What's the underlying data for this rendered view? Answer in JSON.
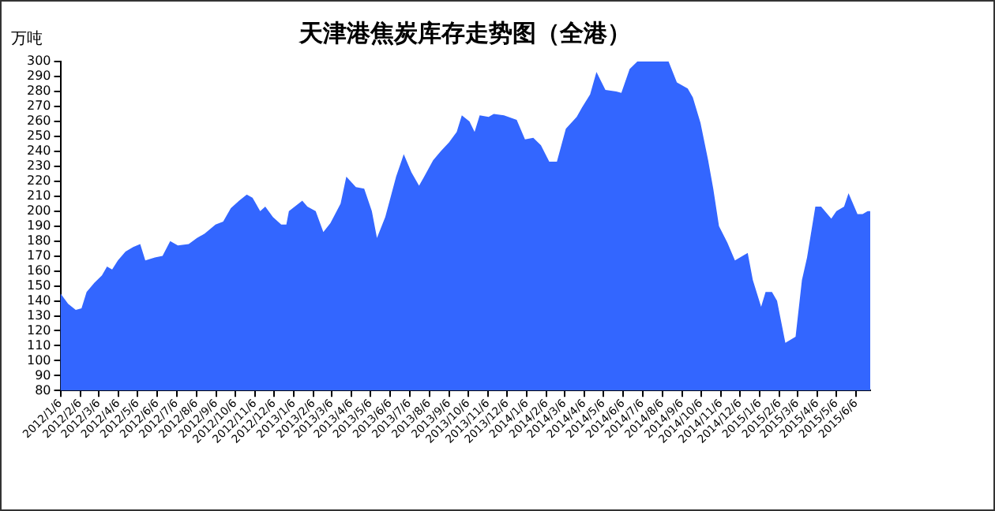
{
  "chart_data": {
    "type": "area",
    "title": "天津港焦炭库存走势图（全港）",
    "ylabel": "万吨",
    "x": [
      "2012-01-06",
      "2012-01-18",
      "2012-01-30",
      "2012-02-08",
      "2012-02-16",
      "2012-02-28",
      "2012-03-11",
      "2012-03-19",
      "2012-03-27",
      "2012-04-05",
      "2012-04-17",
      "2012-04-29",
      "2012-05-10",
      "2012-05-18",
      "2012-06-02",
      "2012-06-14",
      "2012-06-26",
      "2012-07-08",
      "2012-07-25",
      "2012-08-07",
      "2012-08-19",
      "2012-09-05",
      "2012-09-17",
      "2012-09-29",
      "2012-10-12",
      "2012-10-24",
      "2012-11-02",
      "2012-11-14",
      "2012-11-22",
      "2012-12-04",
      "2012-12-17",
      "2012-12-25",
      "2012-12-29",
      "2013-01-19",
      "2013-01-27",
      "2013-02-09",
      "2013-02-21",
      "2013-03-04",
      "2013-03-20",
      "2013-03-29",
      "2013-04-13",
      "2013-04-26",
      "2013-05-08",
      "2013-05-16",
      "2013-05-29",
      "2013-06-15",
      "2013-06-27",
      "2013-07-09",
      "2013-07-21",
      "2013-07-29",
      "2013-08-12",
      "2013-08-24",
      "2013-09-06",
      "2013-09-18",
      "2013-09-26",
      "2013-10-08",
      "2013-10-16",
      "2013-10-24",
      "2013-11-07",
      "2013-11-15",
      "2013-12-01",
      "2013-12-21",
      "2014-01-03",
      "2014-01-16",
      "2014-01-28",
      "2014-02-10",
      "2014-02-22",
      "2014-03-08",
      "2014-03-25",
      "2014-04-02",
      "2014-04-15",
      "2014-04-25",
      "2014-05-09",
      "2014-05-26",
      "2014-06-03",
      "2014-06-16",
      "2014-06-28",
      "2014-08-16",
      "2014-08-29",
      "2014-09-15",
      "2014-09-23",
      "2014-10-05",
      "2014-10-17",
      "2014-10-25",
      "2014-11-03",
      "2014-11-16",
      "2014-11-28",
      "2014-12-10",
      "2014-12-18",
      "2014-12-26",
      "2015-01-08",
      "2015-01-15",
      "2015-01-25",
      "2015-02-02",
      "2015-02-15",
      "2015-03-03",
      "2015-03-13",
      "2015-03-21",
      "2015-04-03",
      "2015-04-12",
      "2015-04-28",
      "2015-05-06",
      "2015-05-18",
      "2015-05-25",
      "2015-06-08",
      "2015-06-16",
      "2015-06-24",
      "2015-06-28"
    ],
    "values": [
      145,
      138,
      134,
      135,
      146,
      152,
      157,
      163,
      161,
      167,
      173,
      176,
      178,
      167,
      169,
      170,
      180,
      177,
      178,
      182,
      185,
      191,
      193,
      202,
      207,
      211,
      209,
      200,
      203,
      196,
      191,
      191,
      200,
      207,
      203,
      200,
      186,
      192,
      205,
      223,
      216,
      215,
      200,
      182,
      196,
      223,
      238,
      226,
      217,
      223,
      234,
      240,
      246,
      253,
      264,
      260,
      253,
      264,
      263,
      265,
      264,
      261,
      248,
      249,
      244,
      233,
      233,
      255,
      263,
      269,
      278,
      293,
      281,
      280,
      279,
      295,
      300,
      300,
      286,
      282,
      276,
      259,
      234,
      215,
      190,
      179,
      167,
      170,
      172,
      154,
      136,
      146,
      146,
      140,
      112,
      116,
      154,
      169,
      203,
      203,
      195,
      200,
      203,
      212,
      198,
      198,
      200,
      200
    ],
    "color": "#3366ff",
    "xlim": [
      "2012-01-06",
      "2015-06-28"
    ],
    "xticks": [
      {
        "value": "2012-01-06",
        "label": "2012/1/6"
      },
      {
        "value": "2012-02-06",
        "label": "2012/2/6"
      },
      {
        "value": "2012-03-06",
        "label": "2012/3/6"
      },
      {
        "value": "2012-04-06",
        "label": "2012/4/6"
      },
      {
        "value": "2012-05-06",
        "label": "2012/5/6"
      },
      {
        "value": "2012-06-06",
        "label": "2012/6/6"
      },
      {
        "value": "2012-07-06",
        "label": "2012/7/6"
      },
      {
        "value": "2012-08-06",
        "label": "2012/8/6"
      },
      {
        "value": "2012-09-06",
        "label": "2012/9/6"
      },
      {
        "value": "2012-10-06",
        "label": "2012/10/6"
      },
      {
        "value": "2012-11-06",
        "label": "2012/11/6"
      },
      {
        "value": "2012-12-06",
        "label": "2012/12/6"
      },
      {
        "value": "2013-01-06",
        "label": "2013/1/6"
      },
      {
        "value": "2013-02-06",
        "label": "2013/2/6"
      },
      {
        "value": "2013-03-06",
        "label": "2013/3/6"
      },
      {
        "value": "2013-04-06",
        "label": "2013/4/6"
      },
      {
        "value": "2013-05-06",
        "label": "2013/5/6"
      },
      {
        "value": "2013-06-06",
        "label": "2013/6/6"
      },
      {
        "value": "2013-07-06",
        "label": "2013/7/6"
      },
      {
        "value": "2013-08-06",
        "label": "2013/8/6"
      },
      {
        "value": "2013-09-06",
        "label": "2013/9/6"
      },
      {
        "value": "2013-10-06",
        "label": "2013/10/6"
      },
      {
        "value": "2013-11-06",
        "label": "2013/11/6"
      },
      {
        "value": "2013-12-06",
        "label": "2013/12/6"
      },
      {
        "value": "2014-01-06",
        "label": "2014/1/6"
      },
      {
        "value": "2014-02-06",
        "label": "2014/2/6"
      },
      {
        "value": "2014-03-06",
        "label": "2014/3/6"
      },
      {
        "value": "2014-04-06",
        "label": "2014/4/6"
      },
      {
        "value": "2014-05-06",
        "label": "2014/5/6"
      },
      {
        "value": "2014-06-06",
        "label": "2014/6/6"
      },
      {
        "value": "2014-07-06",
        "label": "2014/7/6"
      },
      {
        "value": "2014-08-06",
        "label": "2014/8/6"
      },
      {
        "value": "2014-09-06",
        "label": "2014/9/6"
      },
      {
        "value": "2014-10-06",
        "label": "2014/10/6"
      },
      {
        "value": "2014-11-06",
        "label": "2014/11/6"
      },
      {
        "value": "2014-12-06",
        "label": "2014/12/6"
      },
      {
        "value": "2015-01-06",
        "label": "2015/1/6"
      },
      {
        "value": "2015-02-06",
        "label": "2015/2/6"
      },
      {
        "value": "2015-03-06",
        "label": "2015/3/6"
      },
      {
        "value": "2015-04-06",
        "label": "2015/4/6"
      },
      {
        "value": "2015-05-06",
        "label": "2015/5/6"
      },
      {
        "value": "2015-06-06",
        "label": "2015/6/6"
      }
    ],
    "ylim": [
      80,
      300
    ],
    "yticks": [
      80,
      90,
      100,
      110,
      120,
      130,
      140,
      150,
      160,
      170,
      180,
      190,
      200,
      210,
      220,
      230,
      240,
      250,
      260,
      270,
      280,
      290,
      300
    ],
    "grid": false,
    "legend": false,
    "marker": "none"
  }
}
